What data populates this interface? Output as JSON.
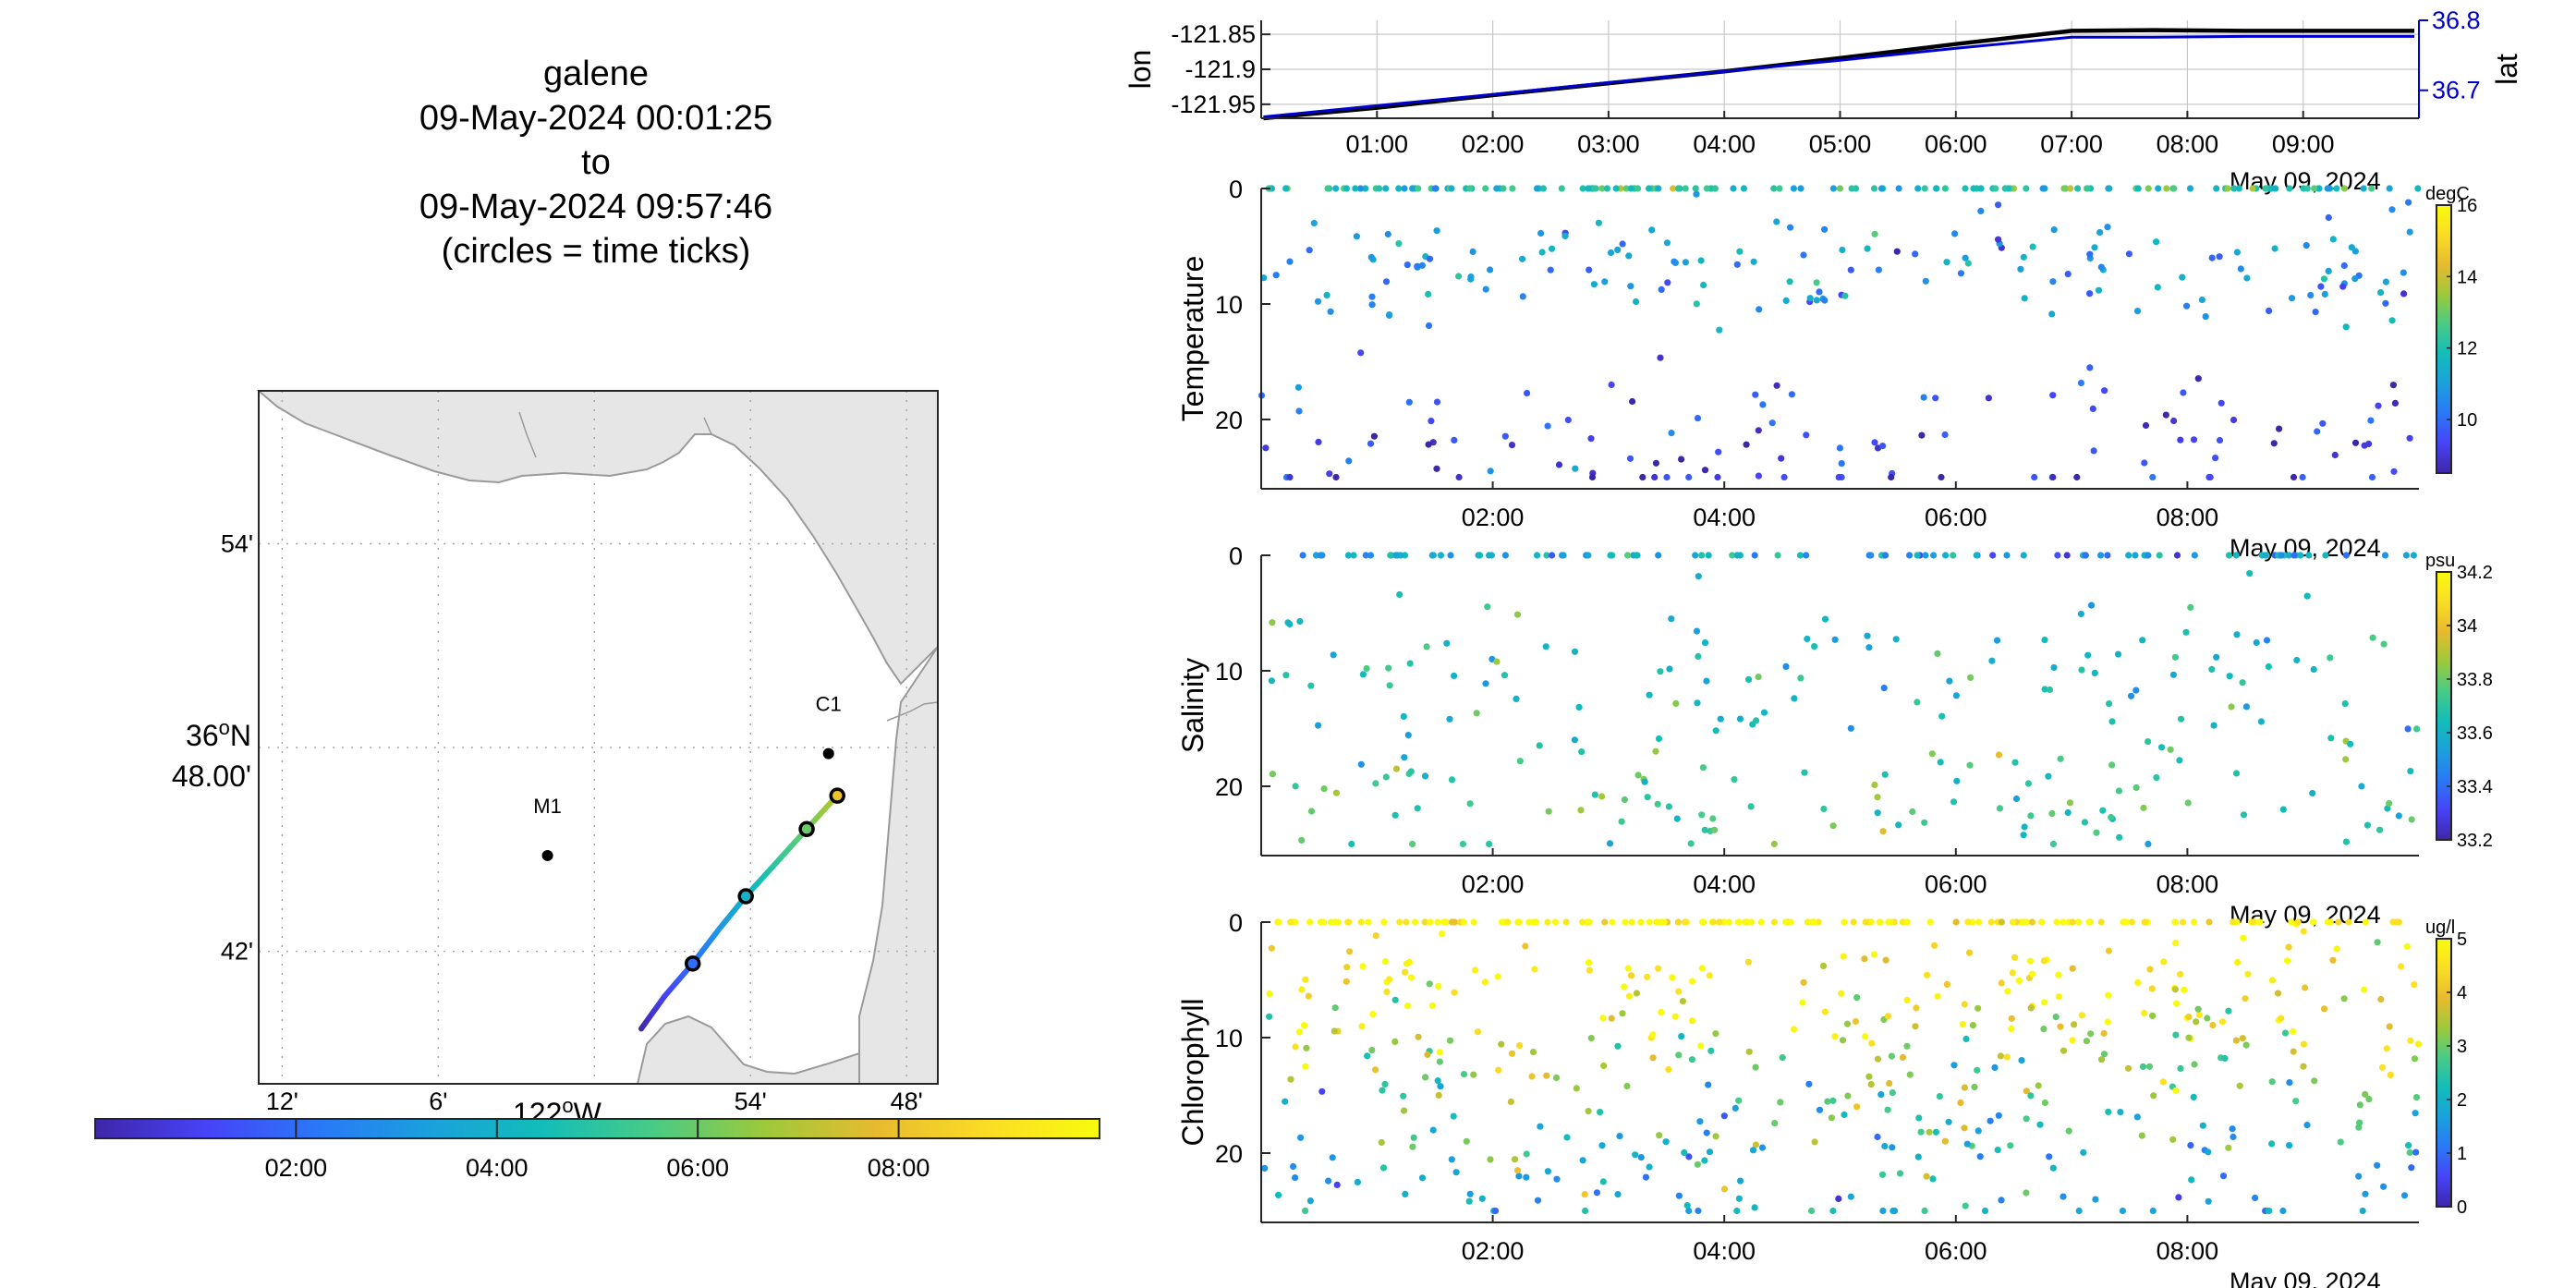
{
  "title": {
    "lines": [
      "galene",
      "09-May-2024 00:01:25",
      "to",
      "09-May-2024 09:57:46",
      "(circles = time ticks)"
    ]
  },
  "map": {
    "lat_ticks": [
      {
        "label": "54'"
      },
      {
        "label_main": "36",
        "label_sup": "o",
        "label_suffix": "N",
        "label_line2": "48.00'"
      },
      {
        "label": "42'"
      }
    ],
    "lon_ticks": [
      "12'",
      "6'",
      "",
      "54'",
      "48'"
    ],
    "lon_main": {
      "text": "122",
      "sup": "o",
      "suffix": "W"
    },
    "stations": [
      {
        "name": "M1",
        "lon": -122.03,
        "lat": 36.747
      },
      {
        "name": "C1",
        "lon": -121.85,
        "lat": 36.797
      }
    ],
    "track_circles_hours": [
      2,
      4,
      6,
      8
    ],
    "colorbar_ticks": [
      "02:00",
      "04:00",
      "06:00",
      "08:00"
    ],
    "land_color": "#e6e6e6",
    "coast_color": "#9a9a9a"
  },
  "colormap": [
    "#3e26a8",
    "#4743f8",
    "#2a78f8",
    "#1aa1dc",
    "#12bdb9",
    "#48cb86",
    "#9dc93a",
    "#e8ba2f",
    "#fadd25",
    "#f9fb0e"
  ],
  "chart_data": [
    {
      "type": "line",
      "title": "",
      "xlabel": "",
      "ylabel": "lon",
      "ylabel_right": "lat",
      "x_hours": [
        0.02,
        1,
        2,
        3,
        4,
        5,
        6,
        7,
        7.7,
        8.5,
        9.96
      ],
      "x_tick_labels": [
        "01:00",
        "02:00",
        "03:00",
        "04:00",
        "05:00",
        "06:00",
        "07:00",
        "08:00",
        "09:00"
      ],
      "date_label": "May 09, 2024",
      "ylim": [
        -121.97,
        -121.83
      ],
      "y_tick_labels": [
        "-121.85",
        "-121.9",
        "-121.95"
      ],
      "ylim_right": [
        36.66,
        36.8
      ],
      "y_tick_labels_right": [
        "36.8",
        "36.7"
      ],
      "series": [
        {
          "name": "lon",
          "color": "#000000",
          "values": [
            -121.97,
            -121.955,
            -121.937,
            -121.92,
            -121.903,
            -121.884,
            -121.864,
            -121.845,
            -121.844,
            -121.845,
            -121.845
          ]
        },
        {
          "name": "lat",
          "color": "#0000cc",
          "values": [
            36.662,
            36.678,
            36.694,
            36.711,
            36.727,
            36.743,
            36.76,
            36.776,
            36.776,
            36.777,
            36.777
          ]
        }
      ]
    },
    {
      "type": "scatter",
      "ylabel": "Temperature",
      "units": "degC",
      "ylim": [
        0,
        26
      ],
      "y_ticks": [
        "0",
        "10",
        "20"
      ],
      "x_tick_labels": [
        "02:00",
        "04:00",
        "06:00",
        "08:00"
      ],
      "date_label": "May 09, 2024",
      "clim": [
        8.5,
        16
      ],
      "cbar_ticks": [
        "16",
        "14",
        "12",
        "10"
      ],
      "bands": [
        {
          "depth": 0,
          "dv": 0.3,
          "c": 12
        },
        {
          "depth": 7,
          "dv": 2.5,
          "c": 10.8
        },
        {
          "depth": 22,
          "dv": 3.5,
          "c": 9.3
        }
      ]
    },
    {
      "type": "scatter",
      "ylabel": "Salinity",
      "units": "psu",
      "ylim": [
        0,
        26
      ],
      "y_ticks": [
        "0",
        "10",
        "20"
      ],
      "x_tick_labels": [
        "02:00",
        "04:00",
        "06:00",
        "08:00"
      ],
      "date_label": "May 09, 2024",
      "clim": [
        33.2,
        34.2
      ],
      "cbar_ticks": [
        "34.2",
        "34",
        "33.8",
        "33.6",
        "33.4",
        "33.2"
      ],
      "bands": [
        {
          "depth": 0,
          "dv": 0.3,
          "c": 33.55
        },
        {
          "depth": 10,
          "dv": 4,
          "c": 33.62
        },
        {
          "depth": 21,
          "dv": 3,
          "c": 33.72
        }
      ]
    },
    {
      "type": "scatter",
      "ylabel": "Chlorophyll",
      "units": "ug/l",
      "ylim": [
        0,
        26
      ],
      "y_ticks": [
        "0",
        "10",
        "20"
      ],
      "x_tick_labels": [
        "02:00",
        "04:00",
        "06:00",
        "08:00"
      ],
      "date_label": "May 09, 2024",
      "clim": [
        0,
        5
      ],
      "cbar_ticks": [
        "5",
        "4",
        "3",
        "2",
        "1",
        "0"
      ],
      "bands": [
        {
          "depth": 0,
          "dv": 0.3,
          "c": 5
        },
        {
          "depth": 6,
          "dv": 3,
          "c": 4.8
        },
        {
          "depth": 13,
          "dv": 4,
          "c": 3.2
        },
        {
          "depth": 21,
          "dv": 4,
          "c": 1.8
        }
      ]
    }
  ]
}
